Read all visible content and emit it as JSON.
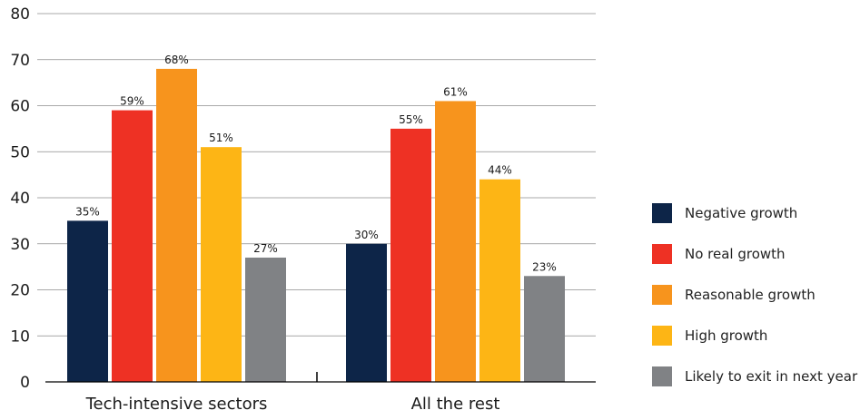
{
  "chart_data": {
    "type": "bar",
    "categories": [
      "Tech-intensive sectors",
      "All the rest"
    ],
    "series": [
      {
        "name": "Negative growth",
        "values": [
          35,
          30
        ],
        "labels": [
          "35%",
          "30%"
        ],
        "color": "#0d2548"
      },
      {
        "name": "No real growth",
        "values": [
          59,
          55
        ],
        "labels": [
          "59%",
          "55%"
        ],
        "color": "#ee3124"
      },
      {
        "name": "Reasonable growth",
        "values": [
          68,
          61
        ],
        "labels": [
          "68%",
          "61%"
        ],
        "color": "#f7941d"
      },
      {
        "name": "High growth",
        "values": [
          51,
          44
        ],
        "labels": [
          "51%",
          "44%"
        ],
        "color": "#fdb515"
      },
      {
        "name": "Likely to exit in next year",
        "values": [
          27,
          23
        ],
        "labels": [
          "27%",
          "23%"
        ],
        "color": "#808285"
      }
    ],
    "ylim": [
      0,
      80
    ],
    "yticks": [
      0,
      10,
      20,
      30,
      40,
      50,
      60,
      70,
      80
    ],
    "grid": true,
    "legend_position": "right",
    "title": "",
    "xlabel": "",
    "ylabel": ""
  }
}
